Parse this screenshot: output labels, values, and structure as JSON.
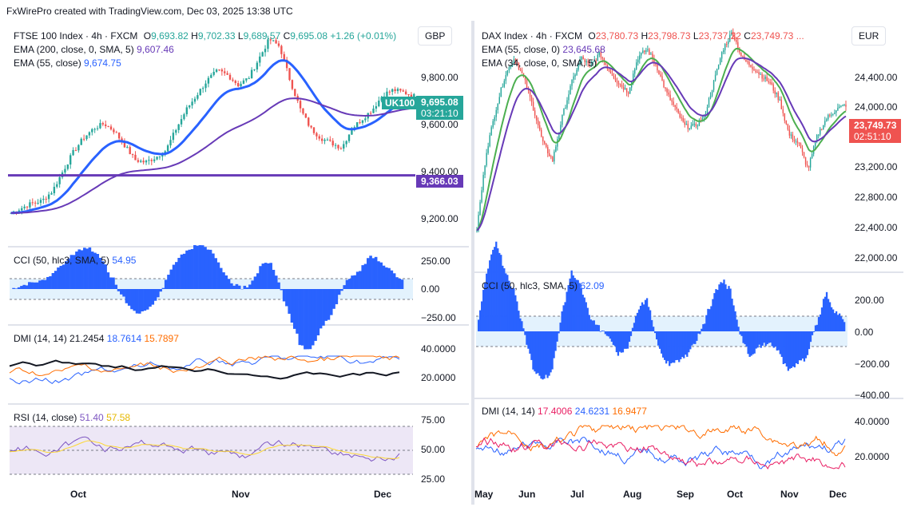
{
  "header": {
    "text": "FxWirePro created with TradingView.com, Dec 03, 2025 13:38 UTC"
  },
  "left": {
    "currency": "GBP",
    "title": "FTSE 100 Index · 4h · FXCM",
    "ohlc": {
      "o_lbl": "O",
      "o": "9,693.82",
      "h_lbl": "H",
      "h": "9,702.33",
      "l_lbl": "L",
      "l": "9,689.57",
      "c_lbl": "C",
      "c": "9,695.08",
      "chg": "+1.26 (+0.01%)"
    },
    "ema200": {
      "label": "EMA (200, close, 0, SMA, 5)",
      "value": "9,607.46"
    },
    "ema55": {
      "label": "EMA (55, close)",
      "value": "9,674.75"
    },
    "price_axis": [
      "9,800.00",
      "9,600.00",
      "9,400.00",
      "9,200.00"
    ],
    "tag_symbol": "UK100",
    "tag_price": "9,695.08",
    "tag_time": "03:21:10",
    "tag_level": "9,366.03",
    "cci": {
      "label": "CCI (50, hlc3, SMA, 5)",
      "value": "54.95",
      "axis": [
        "250.00",
        "0.00",
        "−250.00"
      ]
    },
    "dmi": {
      "label": "DMI (14, 14)",
      "adx": "21.2454",
      "plus": "18.7614",
      "minus": "15.7897",
      "axis": [
        "40.0000",
        "20.0000"
      ]
    },
    "rsi": {
      "label": "RSI (14, close)",
      "value": "51.40",
      "ma": "57.58",
      "axis": [
        "75.00",
        "50.00",
        "25.00"
      ]
    },
    "time_axis": [
      "Oct",
      "Nov",
      "Dec"
    ]
  },
  "right": {
    "currency": "EUR",
    "title": "DAX Index · 4h · FXCM",
    "ohlc": {
      "o_lbl": "O",
      "o": "23,780.73",
      "h_lbl": "H",
      "h": "23,798.73",
      "l_lbl": "L",
      "l": "23,737.22",
      "c_lbl": "C",
      "c": "23,749.73 ..."
    },
    "ema55": {
      "label": "EMA (55, close, 0)",
      "value": "23,645.68"
    },
    "ema34": {
      "label": "EMA (34, close, 0, SMA, 5)",
      "value": ""
    },
    "price_axis": [
      "24,400.00",
      "24,000.00",
      "23,600.00",
      "23,200.00",
      "22,800.00",
      "22,400.00",
      "22,000.00"
    ],
    "tag_price": "23,749.73",
    "tag_time": "02:51:10",
    "cci": {
      "label": "CCI (50, hlc3, SMA, 5)",
      "value": "62.09",
      "axis": [
        "200.00",
        "0.00",
        "−200.00",
        "−400.00"
      ]
    },
    "dmi": {
      "label": "DMI (14, 14)",
      "adx": "17.4006",
      "plus": "24.6231",
      "minus": "16.9477",
      "axis": [
        "40.0000",
        "20.0000"
      ]
    },
    "time_axis": [
      "May",
      "Jun",
      "Jul",
      "Aug",
      "Sep",
      "Oct",
      "Nov",
      "Dec"
    ]
  },
  "colors": {
    "up": "#26a69a",
    "down": "#ef5350",
    "ema_blue": "#2962ff",
    "ema_purple": "#673ab7",
    "ema_green": "#4caf50",
    "cci": "#2962ff",
    "adx": "#131722",
    "dmi_plus": "#2962ff",
    "dmi_minus": "#ff6d00",
    "rsi": "#7e57c2",
    "rsi_ma": "#fdd835",
    "level_line": "#673ab7"
  },
  "chart_data": [
    {
      "type": "candlestick",
      "title": "FTSE 100 Index · 4h · FXCM",
      "x_labels": [
        "Oct",
        "Nov",
        "Dec"
      ],
      "ylim": [
        9100,
        9960
      ],
      "close_path": [
        9210,
        9230,
        9250,
        9260,
        9300,
        9380,
        9460,
        9520,
        9560,
        9580,
        9550,
        9490,
        9430,
        9420,
        9440,
        9470,
        9560,
        9640,
        9700,
        9760,
        9800,
        9780,
        9740,
        9770,
        9850,
        9930,
        9900,
        9760,
        9640,
        9560,
        9520,
        9500,
        9480,
        9560,
        9600,
        9640,
        9700,
        9720,
        9710,
        9695
      ],
      "series": [
        {
          "name": "EMA (200, close, 0, SMA, 5)",
          "last": 9607.46
        },
        {
          "name": "EMA (55, close)",
          "last": 9674.75
        }
      ],
      "horizontal_line": 9366.03
    },
    {
      "type": "candlestick",
      "title": "DAX Index · 4h · FXCM",
      "x_labels": [
        "May",
        "Jun",
        "Jul",
        "Aug",
        "Sep",
        "Oct",
        "Nov",
        "Dec"
      ],
      "ylim": [
        21900,
        24600
      ],
      "close_path": [
        22300,
        23200,
        23700,
        24100,
        24300,
        24050,
        23700,
        23300,
        23100,
        23600,
        24000,
        24300,
        24200,
        24350,
        24150,
        24000,
        23900,
        24300,
        24400,
        24200,
        23900,
        23700,
        23500,
        23500,
        23600,
        24000,
        24400,
        24600,
        24300,
        24200,
        24100,
        24000,
        23800,
        23400,
        23300,
        23000,
        23400,
        23600,
        23700,
        23750
      ],
      "series": [
        {
          "name": "EMA (55, close, 0)",
          "last": 23645.68
        },
        {
          "name": "EMA (34, close, 0, SMA, 5)"
        }
      ]
    }
  ]
}
